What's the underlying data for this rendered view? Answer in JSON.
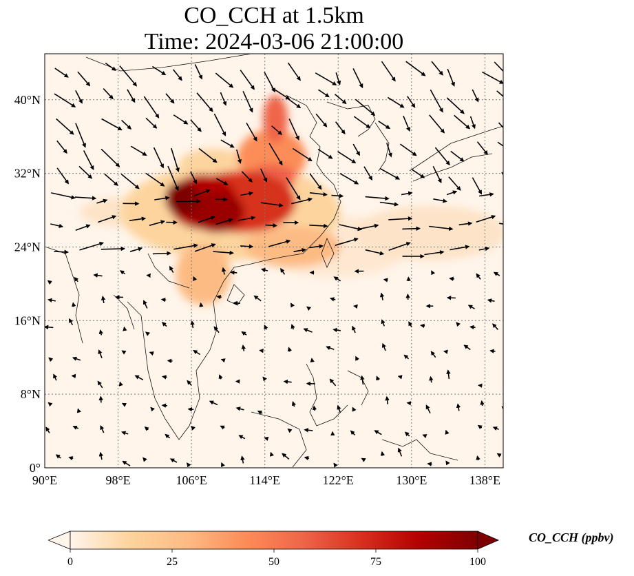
{
  "title": {
    "line1": "CO_CCH at 1.5km",
    "line2": "Time: 2024-03-06 21:00:00"
  },
  "map": {
    "lon_range": [
      90,
      140
    ],
    "lat_range": [
      0,
      45
    ],
    "lon_ticks": [
      "90°E",
      "98°E",
      "106°E",
      "114°E",
      "122°E",
      "130°E",
      "138°E"
    ],
    "lon_tick_values": [
      90,
      98,
      106,
      114,
      122,
      130,
      138
    ],
    "lat_ticks": [
      "0°",
      "8°N",
      "16°N",
      "24°N",
      "32°N",
      "40°N"
    ],
    "lat_tick_values": [
      0,
      8,
      16,
      24,
      32,
      40
    ],
    "gridlines": true,
    "colormap": "OrRd",
    "background_color": "#fff5eb"
  },
  "colorbar": {
    "label": "CO_CCH (ppbv)",
    "ticks": [
      "0",
      "25",
      "50",
      "75",
      "100"
    ],
    "tick_values": [
      0,
      25,
      50,
      75,
      100
    ],
    "range": [
      0,
      100
    ],
    "extend": "both",
    "colors": [
      "#fff5eb",
      "#fdd49e",
      "#fdbb84",
      "#fc8d59",
      "#ef6548",
      "#d7301f",
      "#b30000",
      "#7f0000"
    ]
  }
}
